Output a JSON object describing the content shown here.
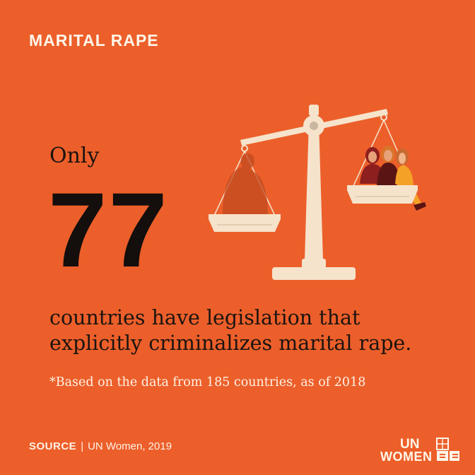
{
  "header": {
    "title": "MARITAL RAPE"
  },
  "stat": {
    "prefix": "Only",
    "number": "77",
    "description": "countries have legislation that explicitly criminalizes marital rape.",
    "footnote": "*Based on the data from 185 countries, as of 2018"
  },
  "footer": {
    "source_label": "SOURCE",
    "separator": "|",
    "source_text": "UN Women, 2019",
    "logo_top": "UN",
    "logo_bottom": "WOMEN"
  },
  "colors": {
    "background": "#ec5f2a",
    "scale": "#f6e3cc",
    "text_dark": "#1b1410",
    "text_light": "#fff2e6"
  },
  "illustration": {
    "name": "balance-scale-icon"
  }
}
